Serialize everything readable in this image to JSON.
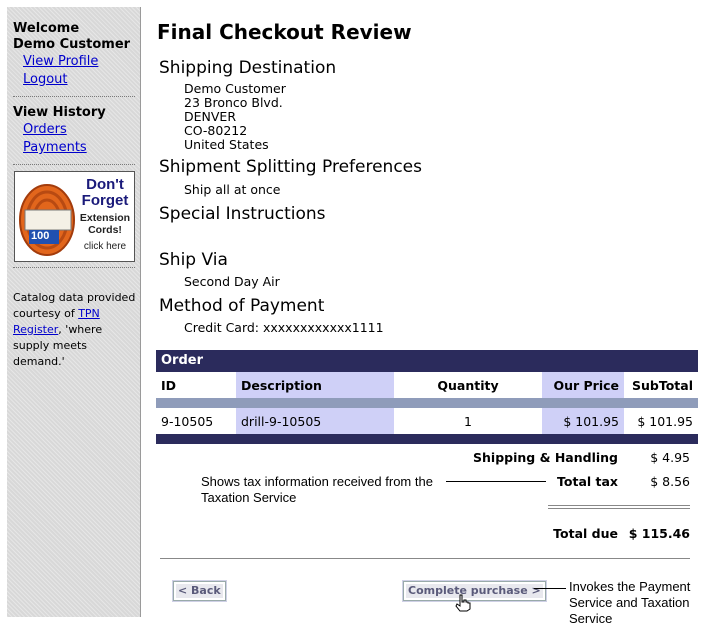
{
  "sidebar": {
    "welcome": "Welcome",
    "user": "Demo Customer",
    "view_profile": "View Profile",
    "logout": "Logout",
    "view_history": "View History",
    "orders": "Orders",
    "payments": "Payments",
    "ad": {
      "line1": "Don't",
      "line2": "Forget",
      "line3": "Extension",
      "line4": "Cords!",
      "cta": "click here",
      "badge": "100"
    },
    "catalog_pre": "Catalog data provided courtesy of ",
    "catalog_link": "TPN Register",
    "catalog_post": ", 'where supply meets demand.'"
  },
  "page": {
    "title": "Final Checkout Review",
    "shipping_destination_heading": "Shipping Destination",
    "address": [
      "Demo Customer",
      "23 Bronco Blvd.",
      "DENVER",
      "CO-80212",
      "United States"
    ],
    "splitting_heading": "Shipment Splitting Preferences",
    "splitting_value": "Ship all at once",
    "instructions_heading": "Special Instructions",
    "ship_via_heading": "Ship Via",
    "ship_via_value": "Second Day Air",
    "payment_heading": "Method of Payment",
    "payment_value": "Credit Card: xxxxxxxxxxxx1111"
  },
  "order": {
    "heading": "Order",
    "columns": [
      "ID",
      "Description",
      "Quantity",
      "Our Price",
      "SubTotal"
    ],
    "rows": [
      {
        "id": "9-10505",
        "description": "drill-9-10505",
        "quantity": "1",
        "price": "$ 101.95",
        "subtotal": "$ 101.95"
      }
    ]
  },
  "totals": {
    "shipping_label": "Shipping & Handling",
    "shipping_value": "$ 4.95",
    "tax_label": "Total tax",
    "tax_value": "$ 8.56",
    "due_label": "Total due",
    "due_value": "$ 115.46"
  },
  "buttons": {
    "back": "< Back",
    "complete": "Complete purchase >"
  },
  "annotations": {
    "tax": "Shows tax information received from the Taxation Service",
    "payment": "Invokes the Payment Service and Taxation Service"
  }
}
